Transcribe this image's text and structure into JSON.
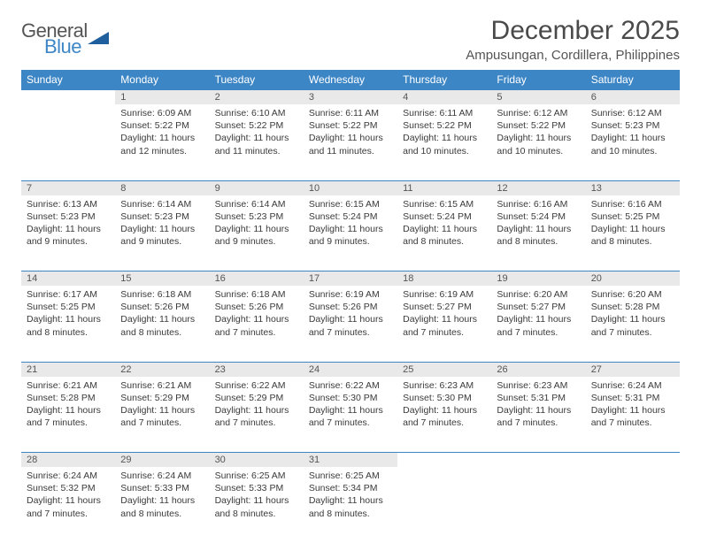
{
  "logo": {
    "line1": "General",
    "line2": "Blue",
    "triangle_color": "#1f5f9e"
  },
  "title": "December 2025",
  "location": "Ampusungan, Cordillera, Philippines",
  "colors": {
    "header_bg": "#3d86c6",
    "header_text": "#ffffff",
    "daynum_bg": "#e9e9e9",
    "rule": "#3d86c6",
    "body_text": "#3a3a3a",
    "title_text": "#4a4a4a"
  },
  "fonts": {
    "title_size": 30,
    "location_size": 15,
    "header_size": 12,
    "daynum_size": 11,
    "cell_size": 10.5
  },
  "weekdays": [
    "Sunday",
    "Monday",
    "Tuesday",
    "Wednesday",
    "Thursday",
    "Friday",
    "Saturday"
  ],
  "weeks": [
    [
      null,
      {
        "n": "1",
        "sunrise": "6:09 AM",
        "sunset": "5:22 PM",
        "daylight": "11 hours and 12 minutes."
      },
      {
        "n": "2",
        "sunrise": "6:10 AM",
        "sunset": "5:22 PM",
        "daylight": "11 hours and 11 minutes."
      },
      {
        "n": "3",
        "sunrise": "6:11 AM",
        "sunset": "5:22 PM",
        "daylight": "11 hours and 11 minutes."
      },
      {
        "n": "4",
        "sunrise": "6:11 AM",
        "sunset": "5:22 PM",
        "daylight": "11 hours and 10 minutes."
      },
      {
        "n": "5",
        "sunrise": "6:12 AM",
        "sunset": "5:22 PM",
        "daylight": "11 hours and 10 minutes."
      },
      {
        "n": "6",
        "sunrise": "6:12 AM",
        "sunset": "5:23 PM",
        "daylight": "11 hours and 10 minutes."
      }
    ],
    [
      {
        "n": "7",
        "sunrise": "6:13 AM",
        "sunset": "5:23 PM",
        "daylight": "11 hours and 9 minutes."
      },
      {
        "n": "8",
        "sunrise": "6:14 AM",
        "sunset": "5:23 PM",
        "daylight": "11 hours and 9 minutes."
      },
      {
        "n": "9",
        "sunrise": "6:14 AM",
        "sunset": "5:23 PM",
        "daylight": "11 hours and 9 minutes."
      },
      {
        "n": "10",
        "sunrise": "6:15 AM",
        "sunset": "5:24 PM",
        "daylight": "11 hours and 9 minutes."
      },
      {
        "n": "11",
        "sunrise": "6:15 AM",
        "sunset": "5:24 PM",
        "daylight": "11 hours and 8 minutes."
      },
      {
        "n": "12",
        "sunrise": "6:16 AM",
        "sunset": "5:24 PM",
        "daylight": "11 hours and 8 minutes."
      },
      {
        "n": "13",
        "sunrise": "6:16 AM",
        "sunset": "5:25 PM",
        "daylight": "11 hours and 8 minutes."
      }
    ],
    [
      {
        "n": "14",
        "sunrise": "6:17 AM",
        "sunset": "5:25 PM",
        "daylight": "11 hours and 8 minutes."
      },
      {
        "n": "15",
        "sunrise": "6:18 AM",
        "sunset": "5:26 PM",
        "daylight": "11 hours and 8 minutes."
      },
      {
        "n": "16",
        "sunrise": "6:18 AM",
        "sunset": "5:26 PM",
        "daylight": "11 hours and 7 minutes."
      },
      {
        "n": "17",
        "sunrise": "6:19 AM",
        "sunset": "5:26 PM",
        "daylight": "11 hours and 7 minutes."
      },
      {
        "n": "18",
        "sunrise": "6:19 AM",
        "sunset": "5:27 PM",
        "daylight": "11 hours and 7 minutes."
      },
      {
        "n": "19",
        "sunrise": "6:20 AM",
        "sunset": "5:27 PM",
        "daylight": "11 hours and 7 minutes."
      },
      {
        "n": "20",
        "sunrise": "6:20 AM",
        "sunset": "5:28 PM",
        "daylight": "11 hours and 7 minutes."
      }
    ],
    [
      {
        "n": "21",
        "sunrise": "6:21 AM",
        "sunset": "5:28 PM",
        "daylight": "11 hours and 7 minutes."
      },
      {
        "n": "22",
        "sunrise": "6:21 AM",
        "sunset": "5:29 PM",
        "daylight": "11 hours and 7 minutes."
      },
      {
        "n": "23",
        "sunrise": "6:22 AM",
        "sunset": "5:29 PM",
        "daylight": "11 hours and 7 minutes."
      },
      {
        "n": "24",
        "sunrise": "6:22 AM",
        "sunset": "5:30 PM",
        "daylight": "11 hours and 7 minutes."
      },
      {
        "n": "25",
        "sunrise": "6:23 AM",
        "sunset": "5:30 PM",
        "daylight": "11 hours and 7 minutes."
      },
      {
        "n": "26",
        "sunrise": "6:23 AM",
        "sunset": "5:31 PM",
        "daylight": "11 hours and 7 minutes."
      },
      {
        "n": "27",
        "sunrise": "6:24 AM",
        "sunset": "5:31 PM",
        "daylight": "11 hours and 7 minutes."
      }
    ],
    [
      {
        "n": "28",
        "sunrise": "6:24 AM",
        "sunset": "5:32 PM",
        "daylight": "11 hours and 7 minutes."
      },
      {
        "n": "29",
        "sunrise": "6:24 AM",
        "sunset": "5:33 PM",
        "daylight": "11 hours and 8 minutes."
      },
      {
        "n": "30",
        "sunrise": "6:25 AM",
        "sunset": "5:33 PM",
        "daylight": "11 hours and 8 minutes."
      },
      {
        "n": "31",
        "sunrise": "6:25 AM",
        "sunset": "5:34 PM",
        "daylight": "11 hours and 8 minutes."
      },
      null,
      null,
      null
    ]
  ]
}
